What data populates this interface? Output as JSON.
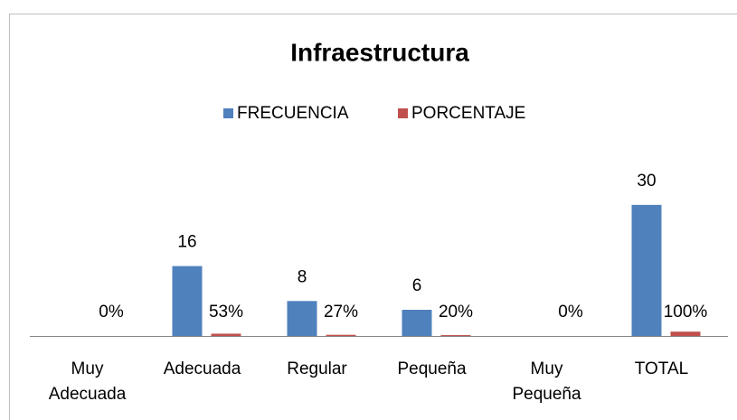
{
  "chart_data": {
    "type": "bar",
    "title": "Infraestructura",
    "categories": [
      "Muy Adecuada",
      "Adecuada",
      "Regular",
      "Pequeña",
      "Muy Pequeña",
      "TOTAL"
    ],
    "series": [
      {
        "name": "FRECUENCIA",
        "color": "#4f81bd",
        "values": [
          null,
          16,
          8,
          6,
          null,
          30
        ]
      },
      {
        "name": "PORCENTAJE",
        "color": "#c0504d",
        "values": [
          0,
          0.53,
          0.27,
          0.2,
          0,
          1
        ],
        "value_labels": [
          "0%",
          "53%",
          "27%",
          "20%",
          "0%",
          "100%"
        ]
      }
    ],
    "ylim": [
      0,
      37
    ],
    "legend": "top"
  }
}
